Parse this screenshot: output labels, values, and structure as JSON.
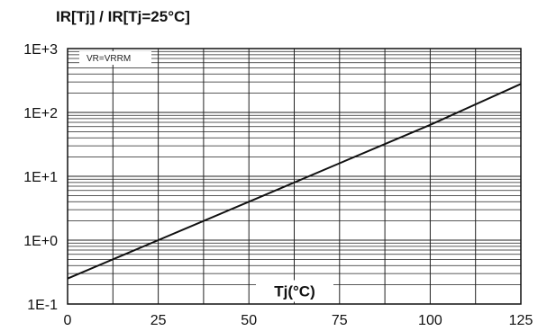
{
  "chart_data": {
    "type": "line",
    "title": "IR[Tj] / IR[Tj=25°C]",
    "xlabel": "Tj(°C)",
    "ylabel": "",
    "xlim": [
      0,
      125
    ],
    "ylim": [
      0.1,
      1000
    ],
    "yscale": "log",
    "grid": true,
    "x_ticks": [
      0,
      25,
      50,
      75,
      100,
      125
    ],
    "x_tick_labels": [
      "0",
      "25",
      "50",
      "75",
      "100",
      "125"
    ],
    "x_minor_step": 12.5,
    "y_ticks": [
      0.1,
      1,
      10,
      100,
      1000
    ],
    "y_tick_labels": [
      "1E-1",
      "1E+0",
      "1E+1",
      "1E+2",
      "1E+3"
    ],
    "annotation": "VR=VRRM",
    "series": [
      {
        "x": [
          0,
          25,
          50,
          75,
          100,
          125
        ],
        "y": [
          0.25,
          1,
          4,
          16,
          64,
          280
        ]
      }
    ],
    "colors": {
      "line": "#111111",
      "grid": "#222222",
      "background": "#ffffff"
    }
  }
}
